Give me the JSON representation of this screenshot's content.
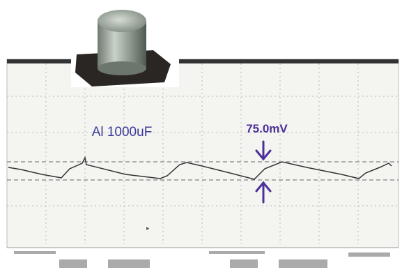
{
  "labels": {
    "component": "Al 1000uF",
    "ripple": "75.0mV"
  }
}
